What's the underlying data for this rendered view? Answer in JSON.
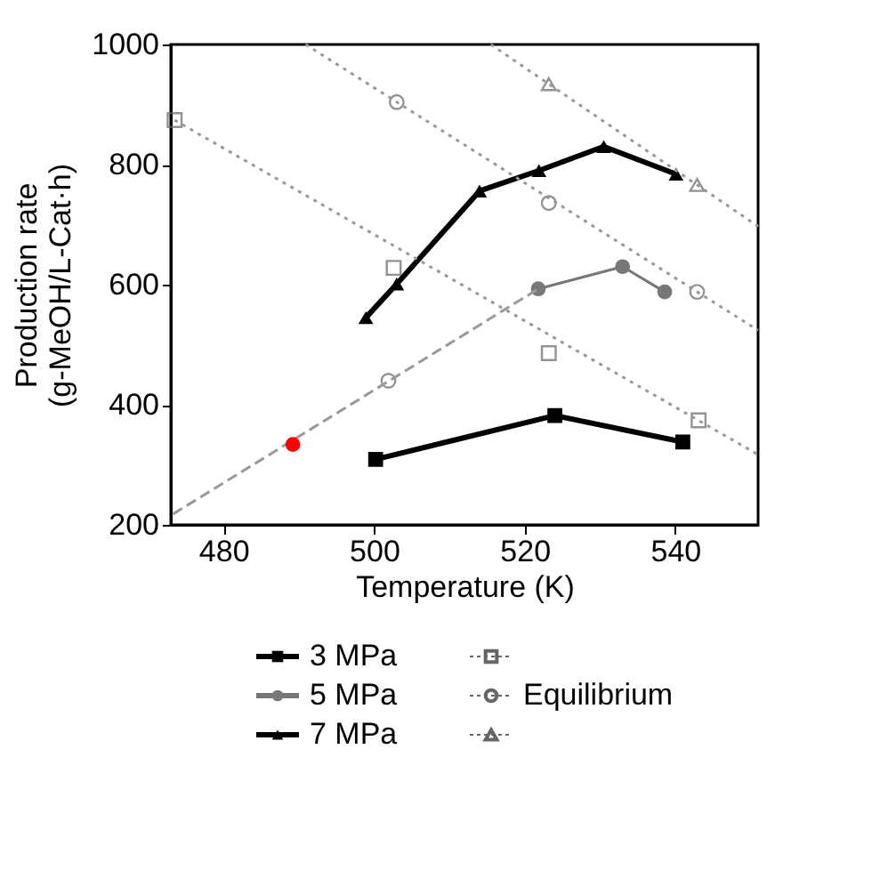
{
  "chart_data": {
    "type": "line",
    "xlabel": "Temperature (K)",
    "ylabel": "Production rate\n(g-MeOH/L-Cat·h)",
    "xlim": [
      473,
      551
    ],
    "xticks": [
      480,
      500,
      520,
      540
    ],
    "ylim": [
      200,
      1000
    ],
    "yticks": [
      200,
      400,
      600,
      800,
      1000
    ],
    "grid": false,
    "legend": "bottom",
    "series": [
      {
        "name": "3 MPa",
        "color": "#000000",
        "marker": "square",
        "line_style": "solid",
        "x": [
          500.2,
          524,
          541
        ],
        "values": [
          309,
          382,
          338
        ]
      },
      {
        "name": "5 MPa",
        "color": "#777777",
        "marker": "circle",
        "line_style": "solid",
        "x": [
          521.8,
          533,
          538.6
        ],
        "values": [
          593,
          630,
          588
        ]
      },
      {
        "name": "7 MPa",
        "color": "#000000",
        "marker": "triangle",
        "line_style": "solid",
        "x": [
          498.9,
          503,
          514,
          521.9,
          530.5,
          540.1
        ],
        "values": [
          545,
          601,
          756,
          790,
          830,
          784
        ]
      },
      {
        "type": "scatter",
        "color": "#666666",
        "marker": "square",
        "x": [
          473.5,
          502.6,
          523.2,
          543.1
        ],
        "values": [
          874,
          628,
          486,
          374
        ]
      },
      {
        "name": "Equilibrium",
        "type": "scatter",
        "color": "#666666",
        "marker": "circle",
        "x": [
          501.9,
          503,
          523.2,
          542.9
        ],
        "values": [
          440,
          904,
          736,
          588
        ]
      },
      {
        "type": "scatter",
        "color": "#666666",
        "marker": "triangle",
        "x": [
          523.2,
          542.9
        ],
        "values": [
          934,
          766
        ]
      },
      {
        "color": "#999999",
        "marker": "none",
        "line_style": "dashed",
        "x": [
          473.3,
          521.8
        ],
        "values": [
          218,
          593
        ]
      },
      {
        "color": "#999999",
        "marker": "none",
        "line_style": "dotted",
        "x": [
          473.5,
          551
        ],
        "values": [
          874,
          317
        ]
      },
      {
        "color": "#999999",
        "marker": "none",
        "line_style": "dotted",
        "x": [
          490.9,
          551
        ],
        "values": [
          1000,
          524
        ]
      },
      {
        "color": "#999999",
        "marker": "none",
        "line_style": "dotted",
        "x": [
          515.5,
          551
        ],
        "values": [
          1000,
          697
        ]
      },
      {
        "color": "#ff0000",
        "marker": "circle",
        "x": [
          489.2
        ],
        "values": [
          334
        ]
      }
    ]
  }
}
